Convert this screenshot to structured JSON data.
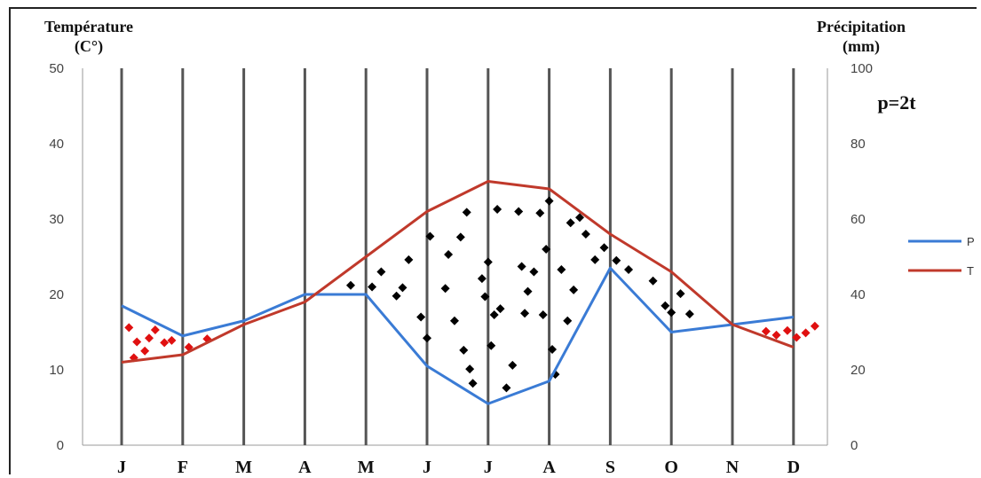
{
  "chart_data": {
    "type": "line",
    "left_axis_title": [
      "Température",
      "(C°)"
    ],
    "right_axis_title": [
      "Précipitation",
      "(mm)"
    ],
    "annotation": "p=2t",
    "categories": [
      "J",
      "F",
      "M",
      "A",
      "M",
      "J",
      "J",
      "A",
      "S",
      "O",
      "N",
      "D"
    ],
    "left_ticks": [
      "0",
      "10",
      "20",
      "30",
      "40",
      "50"
    ],
    "right_ticks": [
      "0",
      "20",
      "40",
      "60",
      "80",
      "100"
    ],
    "ylim_left": [
      0,
      50
    ],
    "ylim_right": [
      0,
      100
    ],
    "legend_position": "right",
    "series": [
      {
        "name": "P",
        "axis": "right",
        "color": "#3a7bd5",
        "values": [
          37,
          29,
          33,
          40,
          40,
          21,
          11,
          17,
          47,
          30,
          32,
          34
        ]
      },
      {
        "name": "T",
        "axis": "left",
        "color": "#c0392b",
        "values": [
          11,
          12,
          16,
          19,
          25,
          31,
          35,
          34,
          28,
          23,
          16,
          13
        ]
      }
    ],
    "hatch": {
      "humid_color": "#e01010",
      "dry_color": "#000000",
      "humid_dots": [
        [
          0.12,
          15.6
        ],
        [
          0.2,
          11.6
        ],
        [
          0.25,
          13.7
        ],
        [
          0.38,
          12.5
        ],
        [
          0.45,
          14.2
        ],
        [
          0.55,
          15.3
        ],
        [
          0.7,
          13.6
        ],
        [
          0.82,
          13.9
        ],
        [
          1.1,
          13.0
        ],
        [
          1.4,
          14.1
        ],
        [
          10.55,
          15.1
        ],
        [
          10.72,
          14.6
        ],
        [
          10.9,
          15.2
        ],
        [
          11.05,
          14.3
        ],
        [
          11.2,
          14.9
        ],
        [
          11.35,
          15.8
        ]
      ],
      "dry_dots": [
        [
          3.75,
          21.2
        ],
        [
          4.1,
          21.0
        ],
        [
          4.25,
          23.0
        ],
        [
          4.5,
          19.8
        ],
        [
          4.6,
          20.9
        ],
        [
          4.7,
          24.6
        ],
        [
          4.9,
          17.0
        ],
        [
          5.0,
          14.2
        ],
        [
          5.05,
          27.7
        ],
        [
          5.3,
          20.8
        ],
        [
          5.35,
          25.3
        ],
        [
          5.45,
          16.5
        ],
        [
          5.55,
          27.6
        ],
        [
          5.6,
          12.6
        ],
        [
          5.7,
          10.1
        ],
        [
          5.75,
          8.2
        ],
        [
          5.9,
          22.1
        ],
        [
          5.95,
          19.7
        ],
        [
          6.0,
          24.3
        ],
        [
          6.05,
          13.2
        ],
        [
          6.1,
          17.3
        ],
        [
          6.2,
          18.1
        ],
        [
          6.3,
          7.6
        ],
        [
          6.4,
          10.6
        ],
        [
          6.5,
          31.0
        ],
        [
          6.55,
          23.7
        ],
        [
          6.6,
          17.5
        ],
        [
          6.65,
          20.4
        ],
        [
          6.75,
          23.0
        ],
        [
          6.9,
          17.3
        ],
        [
          6.95,
          26.0
        ],
        [
          7.0,
          32.4
        ],
        [
          7.05,
          12.7
        ],
        [
          7.1,
          9.4
        ],
        [
          7.2,
          23.3
        ],
        [
          7.3,
          16.5
        ],
        [
          7.4,
          20.6
        ],
        [
          7.5,
          30.2
        ],
        [
          7.6,
          28.0
        ],
        [
          7.75,
          24.6
        ],
        [
          7.9,
          26.2
        ],
        [
          8.1,
          24.5
        ],
        [
          8.3,
          23.3
        ],
        [
          8.7,
          21.8
        ],
        [
          8.9,
          18.5
        ],
        [
          9.0,
          17.6
        ],
        [
          9.3,
          17.4
        ],
        [
          9.15,
          20.1
        ],
        [
          5.65,
          30.9
        ],
        [
          6.85,
          30.8
        ],
        [
          7.35,
          29.5
        ],
        [
          6.15,
          31.3
        ]
      ]
    }
  }
}
